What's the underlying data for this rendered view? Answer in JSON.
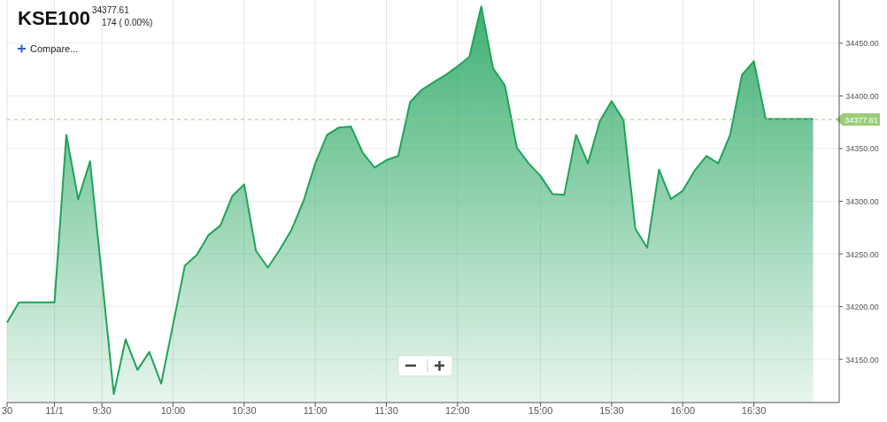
{
  "chart_data": {
    "type": "area",
    "title": "KSE100",
    "annotations": [
      "34377.61",
      "174 ( 0.00%)",
      "Compare..."
    ],
    "categories": [
      "30",
      null,
      null,
      null,
      "11/1",
      null,
      null,
      null,
      "9:30",
      null,
      null,
      null,
      null,
      null,
      "10:00",
      null,
      null,
      null,
      null,
      null,
      "10:30",
      null,
      null,
      null,
      null,
      null,
      "11:00",
      null,
      null,
      null,
      null,
      null,
      "11:30",
      null,
      null,
      null,
      null,
      null,
      "12:00",
      null,
      null,
      null,
      null,
      null,
      null,
      "15:00",
      null,
      null,
      null,
      null,
      null,
      "15:30",
      null,
      null,
      null,
      null,
      null,
      "16:00",
      null,
      null,
      null,
      null,
      null,
      "16:30",
      null,
      null,
      null,
      null,
      null
    ],
    "series": [
      {
        "color": "#1ea35a",
        "values": [
          34185,
          34204,
          34204,
          34204,
          34204,
          34363,
          34302,
          34338,
          34228,
          34117,
          34169,
          34140,
          34157,
          34127,
          34183,
          34239,
          34249,
          34268,
          34277,
          34305,
          34316,
          34253,
          34237,
          34254,
          34273,
          34300,
          34336,
          34363,
          34370,
          34371,
          34346,
          34332,
          34339,
          34343,
          34394,
          34406,
          34413,
          34420,
          34428,
          34437,
          34485,
          34426,
          34410,
          34351,
          34336,
          34324,
          34307,
          34306,
          34363,
          34336,
          34376,
          34395,
          34377,
          34274,
          34256,
          34330,
          34302,
          34310,
          34329,
          34343,
          34336,
          34363,
          34420,
          34433,
          34378,
          34378,
          34378,
          34378,
          34378
        ]
      }
    ],
    "ylim": [
      34109,
      34491
    ],
    "yticks": [
      {
        "value": 34150,
        "label": "34150.00"
      },
      {
        "value": 34200,
        "label": "34200.00"
      },
      {
        "value": 34250,
        "label": "34250.00"
      },
      {
        "value": 34300,
        "label": "34300.00"
      },
      {
        "value": 34350,
        "label": "34350.00"
      },
      {
        "value": 34400,
        "label": "34400.00"
      },
      {
        "value": 34450,
        "label": "34450.00"
      }
    ],
    "grid": true,
    "ref_lines": [
      {
        "axis": "y",
        "value": 34377.61,
        "label": "34377.61",
        "color": "#9ccc7a",
        "line_style": "dashed"
      }
    ]
  }
}
